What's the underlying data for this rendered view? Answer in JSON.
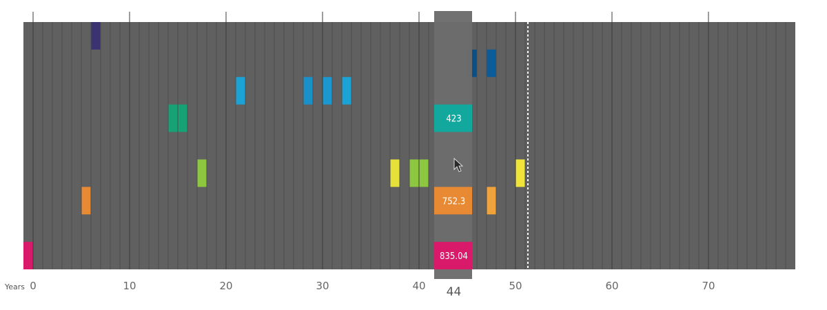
{
  "chart_data": {
    "type": "heatmap",
    "xlabel": "Years",
    "x_ticks": [
      0,
      10,
      20,
      30,
      40,
      50,
      60,
      70
    ],
    "x_range": [
      -1,
      79
    ],
    "rows": 9,
    "marker_line_year": 51,
    "hover": {
      "year": 44,
      "label": "44"
    },
    "colors": {
      "background": "#606060",
      "cell_line": "#4e4e4e",
      "major_line": "#3a3a3a",
      "hover_band": "#6c6c6c",
      "marker_line": "#ffffff"
    },
    "cells": [
      {
        "year": 6,
        "row": 0,
        "color": "#3b3370"
      },
      {
        "year": 45,
        "row": 1,
        "color": "#0b4f85"
      },
      {
        "year": 47,
        "row": 1,
        "color": "#0b5c99"
      },
      {
        "year": 21,
        "row": 2,
        "color": "#1aa3d4"
      },
      {
        "year": 28,
        "row": 2,
        "color": "#1a90c8"
      },
      {
        "year": 30,
        "row": 2,
        "color": "#1a98cf"
      },
      {
        "year": 32,
        "row": 2,
        "color": "#1aa3d4"
      },
      {
        "year": 14,
        "row": 3,
        "color": "#16a274"
      },
      {
        "year": 15,
        "row": 3,
        "color": "#16a274"
      },
      {
        "year": 17,
        "row": 5,
        "color": "#8dc63f"
      },
      {
        "year": 37,
        "row": 5,
        "color": "#e6e03a"
      },
      {
        "year": 39,
        "row": 5,
        "color": "#8dc63f"
      },
      {
        "year": 40,
        "row": 5,
        "color": "#8dc63f"
      },
      {
        "year": 50,
        "row": 5,
        "color": "#f0e43a"
      },
      {
        "year": 5,
        "row": 6,
        "color": "#e88a34"
      },
      {
        "year": 47,
        "row": 6,
        "color": "#f0a33a"
      },
      {
        "year": -1,
        "row": 8,
        "color": "#d9196a"
      },
      {
        "year": 44,
        "row": 8,
        "color": "#d9196a"
      }
    ],
    "hover_values": [
      {
        "row": 3,
        "value": "423",
        "color": "#13a89e"
      },
      {
        "row": 6,
        "value": "752.3",
        "color": "#e88a34"
      },
      {
        "row": 8,
        "value": "835.04",
        "color": "#d9196a"
      }
    ]
  }
}
